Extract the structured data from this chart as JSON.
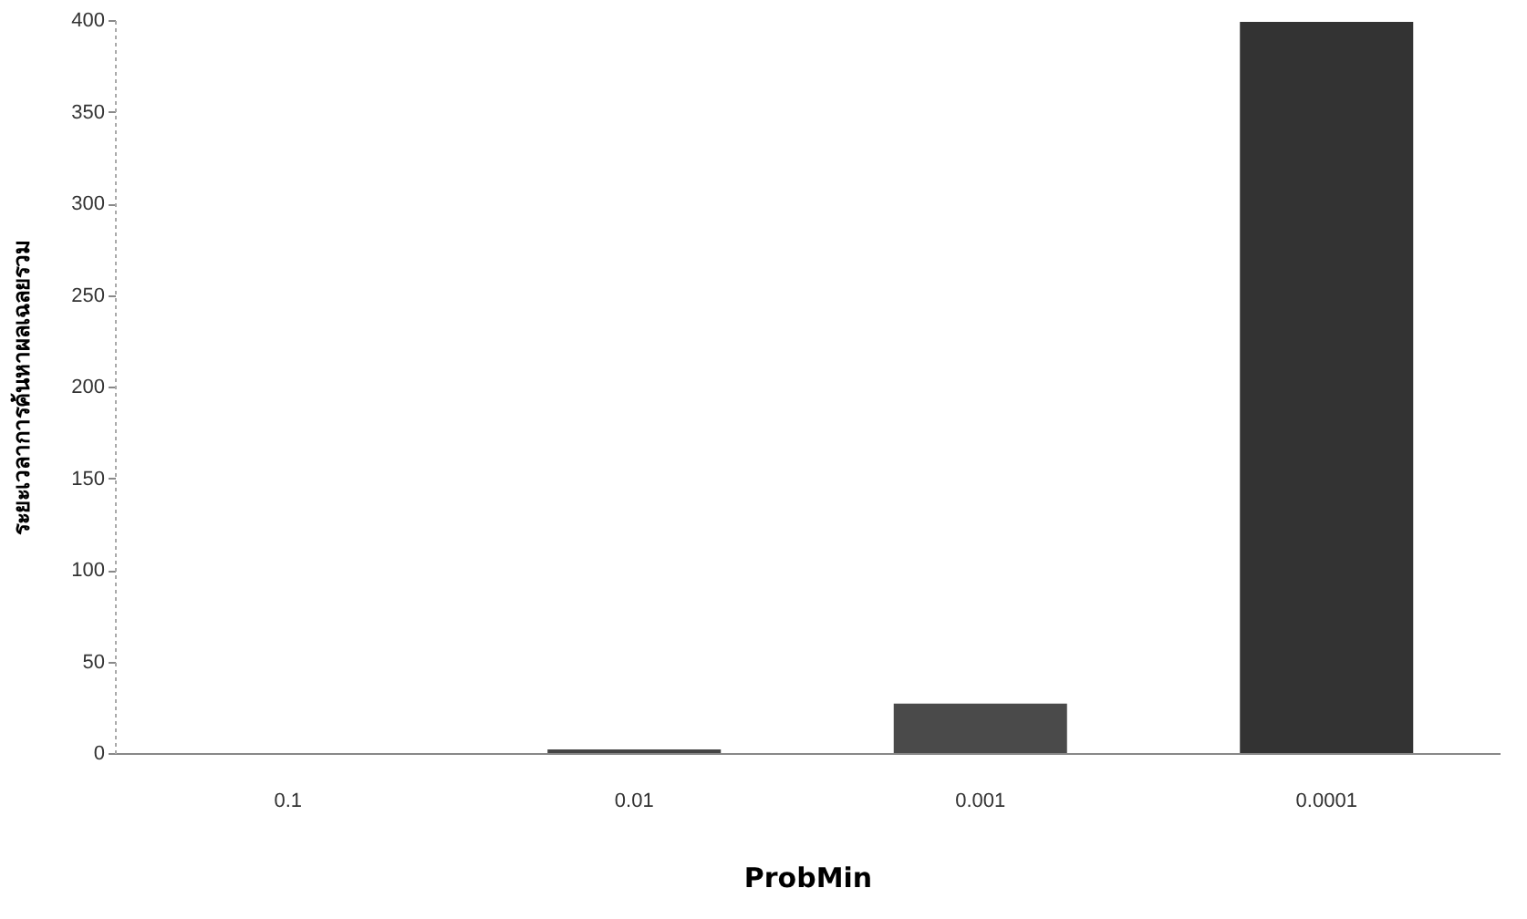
{
  "chart_data": {
    "type": "bar",
    "xlabel": "ProbMin",
    "ylabel": "ระยะเวลาการค้นหาผลเฉลยรวม",
    "categories": [
      "0.1",
      "0.01",
      "0.001",
      "0.0001"
    ],
    "values": [
      0,
      2,
      27,
      399
    ],
    "colors": [
      "#444444",
      "#444444",
      "#4a4a4a",
      "#333333"
    ],
    "ylim": [
      0,
      400
    ],
    "yticks": [
      0,
      50,
      100,
      150,
      200,
      250,
      300,
      350,
      400
    ],
    "grid": false
  }
}
